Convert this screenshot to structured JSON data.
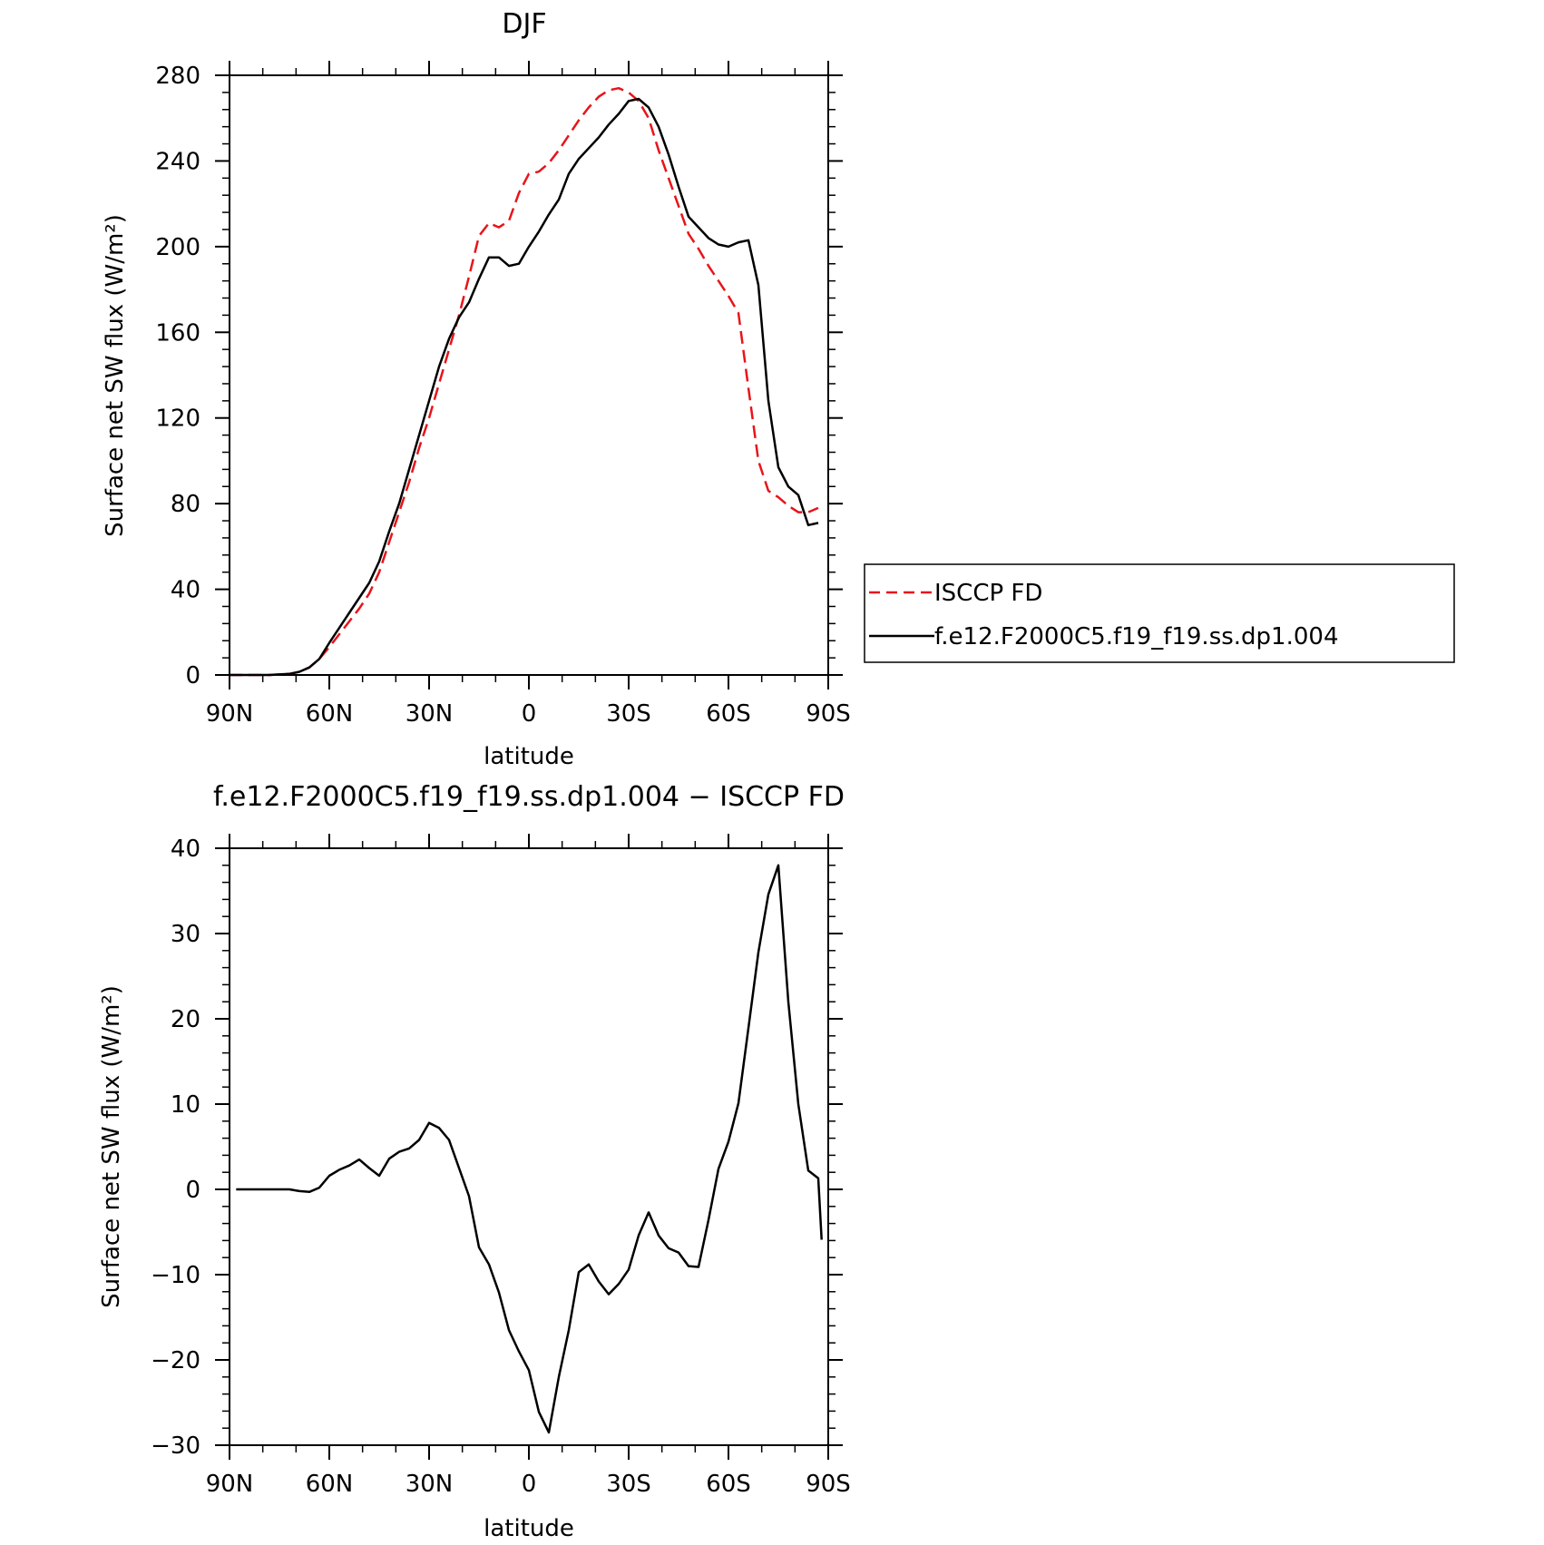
{
  "chart_data": [
    {
      "type": "line",
      "title": "DJF",
      "xlabel": "latitude",
      "ylabel": "Surface net SW flux (W/m²)",
      "xlim": [
        90,
        -90
      ],
      "ylim": [
        0,
        280
      ],
      "x_ticks": [
        90,
        60,
        30,
        0,
        -30,
        -60,
        -90
      ],
      "x_tick_labels": [
        "90N",
        "60N",
        "30N",
        "0",
        "30S",
        "60S",
        "90S"
      ],
      "y_ticks": [
        0,
        40,
        80,
        120,
        160,
        200,
        240,
        280
      ],
      "y_tick_labels": [
        "0",
        "40",
        "80",
        "120",
        "160",
        "200",
        "240",
        "280"
      ],
      "legend": {
        "placement": "right"
      },
      "series": [
        {
          "name": "ISCCP FD",
          "color": "#e8141a",
          "dash": true,
          "x": [
            90,
            84,
            78,
            72,
            69,
            66,
            63,
            60,
            57,
            54,
            51,
            48,
            45,
            42,
            39,
            36,
            33,
            30,
            27,
            24,
            21,
            18,
            15,
            12,
            9,
            6,
            3,
            0,
            -3,
            -6,
            -9,
            -12,
            -15,
            -18,
            -21,
            -24,
            -27,
            -30,
            -33,
            -36,
            -39,
            -42,
            -45,
            -48,
            -51,
            -54,
            -57,
            -60,
            -63,
            -66,
            -69,
            -72,
            -75,
            -78,
            -81,
            -84,
            -87
          ],
          "values": [
            0,
            0,
            0,
            0.5,
            1.5,
            3.5,
            7.5,
            13,
            19,
            25,
            31,
            38,
            48,
            62,
            76,
            90,
            106,
            120,
            136,
            152,
            168,
            186,
            205,
            211,
            209,
            212,
            225,
            234,
            235,
            239,
            245,
            252,
            259,
            265,
            270,
            273,
            274,
            272,
            268,
            260,
            245,
            232,
            219,
            206,
            199,
            191,
            184,
            177,
            169,
            134,
            100,
            86,
            83,
            79,
            76,
            76,
            78
          ]
        },
        {
          "name": "f.e12.F2000C5.f19_f19.ss.dp1.004",
          "color": "#000000",
          "dash": false,
          "x": [
            90,
            84,
            78,
            72,
            69,
            66,
            63,
            60,
            57,
            54,
            51,
            48,
            45,
            42,
            39,
            36,
            33,
            30,
            27,
            24,
            21,
            18,
            15,
            12,
            9,
            6,
            3,
            0,
            -3,
            -6,
            -9,
            -12,
            -15,
            -18,
            -21,
            -24,
            -27,
            -30,
            -33,
            -36,
            -39,
            -42,
            -45,
            -48,
            -51,
            -54,
            -57,
            -60,
            -63,
            -66,
            -69,
            -72,
            -75,
            -78,
            -81,
            -84,
            -87
          ],
          "values": [
            0,
            0,
            0,
            0.5,
            1.5,
            3.5,
            7.5,
            15,
            22,
            29,
            36,
            43,
            53,
            67,
            80,
            96,
            112,
            128,
            144,
            157,
            167,
            174,
            185,
            195,
            195,
            191,
            192,
            200,
            207,
            215,
            222,
            234,
            241,
            246,
            251,
            257,
            262,
            268,
            269,
            265,
            256,
            243,
            228,
            214,
            209,
            204,
            201,
            200,
            202,
            203,
            182,
            128,
            97,
            88,
            84,
            70,
            71
          ]
        }
      ]
    },
    {
      "type": "line",
      "title": "f.e12.F2000C5.f19_f19.ss.dp1.004 − ISCCP FD",
      "xlabel": "latitude",
      "ylabel": "Surface net SW flux (W/m²)",
      "xlim": [
        90,
        -90
      ],
      "ylim": [
        -30,
        40
      ],
      "x_ticks": [
        90,
        60,
        30,
        0,
        -30,
        -60,
        -90
      ],
      "x_tick_labels": [
        "90N",
        "60N",
        "30N",
        "0",
        "30S",
        "60S",
        "90S"
      ],
      "y_ticks": [
        -30,
        -20,
        -10,
        0,
        10,
        20,
        30,
        40
      ],
      "y_tick_labels": [
        "−30",
        "−20",
        "−10",
        "0",
        "10",
        "20",
        "30",
        "40"
      ],
      "series": [
        {
          "color": "#000000",
          "dash": false,
          "x": [
            88,
            84,
            78,
            72,
            69,
            66,
            63,
            60,
            57,
            54,
            51,
            48,
            45,
            42,
            39,
            36,
            33,
            30,
            27,
            24,
            21,
            18,
            15,
            12,
            9,
            6,
            3,
            0,
            -3,
            -6,
            -9,
            -12,
            -15,
            -18,
            -21,
            -24,
            -27,
            -30,
            -33,
            -36,
            -39,
            -42,
            -45,
            -48,
            -51,
            -54,
            -57,
            -60,
            -63,
            -66,
            -69,
            -72,
            -75,
            -78,
            -81,
            -84,
            -87,
            -88
          ],
          "values": [
            0,
            0,
            0,
            0,
            -0.2,
            -0.3,
            0.2,
            1.6,
            2.3,
            2.8,
            3.5,
            2.5,
            1.6,
            3.6,
            4.4,
            4.8,
            5.8,
            7.8,
            7.2,
            5.8,
            2.5,
            -0.8,
            -6.8,
            -8.8,
            -12.1,
            -16.5,
            -19,
            -21.2,
            -26.1,
            -28.5,
            -22,
            -16.5,
            -9.7,
            -8.8,
            -10.8,
            -12.3,
            -11.1,
            -9.4,
            -5.4,
            -2.7,
            -5.4,
            -6.9,
            -7.4,
            -9.0,
            -9.1,
            -3.6,
            2.4,
            5.6,
            10.1,
            18.9,
            27.8,
            34.6,
            38.0,
            22.0,
            10.0,
            2.2,
            1.3,
            -5.9
          ]
        }
      ]
    }
  ]
}
